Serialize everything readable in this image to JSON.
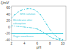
{
  "chart_data": {
    "type": "line",
    "title": "",
    "xlabel": "pH",
    "ylabel": "ζ/mV",
    "xlim": [
      2,
      10.5
    ],
    "ylim": [
      -42,
      65
    ],
    "xticks": [
      2,
      4,
      6,
      8,
      10
    ],
    "yticks": [
      -40,
      -20,
      0,
      20,
      40,
      60
    ],
    "series": [
      {
        "name": "SHS solution",
        "color": "#44ccdd",
        "line_style": "dashed",
        "marker": "dot",
        "x": [
          2.0,
          2.5,
          3.0,
          3.5,
          4.0,
          4.5,
          5.0,
          5.5,
          6.0,
          6.5,
          7.0,
          7.5,
          8.0,
          8.5,
          9.0,
          9.5,
          10.0
        ],
        "values": [
          28,
          38,
          46,
          52,
          55,
          57,
          57,
          54,
          48,
          38,
          24,
          8,
          -8,
          -20,
          -30,
          -36,
          -39
        ]
      },
      {
        "name": "Virgin membrane",
        "color": "#44ccdd",
        "line_style": "solid",
        "marker": "dot",
        "x": [
          2.0,
          4.0,
          6.0,
          8.0,
          9.0,
          10.0
        ],
        "values": [
          -20,
          -20,
          -20,
          -20,
          -20,
          -20
        ]
      },
      {
        "name": "Membrane after\nadsorption",
        "color": "#44ccdd",
        "line_style": "dashed",
        "marker": "dot",
        "x": [
          2.0,
          3.0,
          4.0,
          5.0,
          6.0,
          6.5,
          7.0,
          7.5,
          8.0,
          8.5,
          9.0,
          9.5,
          10.0
        ],
        "values": [
          4,
          2,
          0,
          -2,
          -6,
          -11,
          -17,
          -23,
          -30,
          -35,
          -38,
          -40,
          -41
        ]
      }
    ]
  }
}
